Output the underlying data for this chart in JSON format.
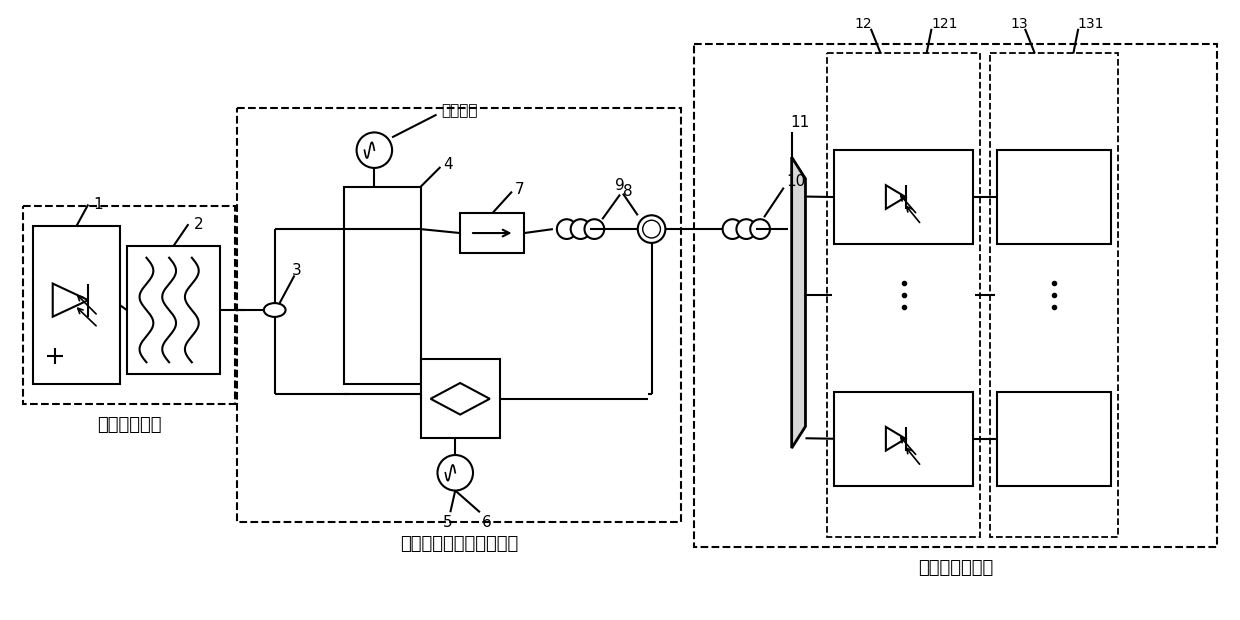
{
  "bg_color": "#ffffff",
  "box1_label": "光梳产生模块",
  "box2_label": "信号调制及光梳相移模块",
  "box3_label": "色散及波分模块",
  "signal_label": "待测信号"
}
